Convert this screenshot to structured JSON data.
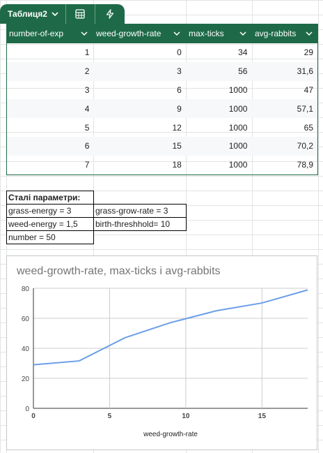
{
  "table_chip": {
    "name": "Таблиця2",
    "icons": [
      "chevron-down-icon",
      "calculator-icon",
      "lightning-icon"
    ]
  },
  "table": {
    "columns": [
      "number-of-exp",
      "weed-growth-rate",
      "max-ticks",
      "avg-rabbits"
    ],
    "rows": [
      [
        "1",
        "0",
        "34",
        "29"
      ],
      [
        "2",
        "3",
        "56",
        "31,6"
      ],
      [
        "3",
        "6",
        "1000",
        "47"
      ],
      [
        "4",
        "9",
        "1000",
        "57,1"
      ],
      [
        "5",
        "12",
        "1000",
        "65"
      ],
      [
        "6",
        "15",
        "1000",
        "70,2"
      ],
      [
        "7",
        "18",
        "1000",
        "78,9"
      ]
    ]
  },
  "params": {
    "title": "Сталі параметри:",
    "grass_energy": "grass-energy = 3",
    "grass_grow_rate": "grass-grow-rate = 3",
    "weed_energy": "weed-energy = 1,5",
    "birth_threshold": "birth-threshhold= 10",
    "number": "number = 50"
  },
  "colors": {
    "header_bg": "#1e6a48",
    "line": "#6b9ee8"
  },
  "chart_data": {
    "type": "line",
    "title": "weed-growth-rate, max-ticks і avg-rabbits",
    "xlabel": "weed-growth-rate",
    "ylabel": "",
    "x": [
      0,
      3,
      6,
      9,
      12,
      15,
      18
    ],
    "series": [
      {
        "values": [
          29,
          31.6,
          47,
          57.1,
          65,
          70.2,
          78.9
        ]
      }
    ],
    "xlim": [
      0,
      18
    ],
    "ylim": [
      0,
      80
    ],
    "xticks": [
      "0",
      "5",
      "10",
      "15"
    ],
    "yticks": [
      "0",
      "20",
      "40",
      "60",
      "80"
    ],
    "grid": true,
    "legend": "none"
  }
}
